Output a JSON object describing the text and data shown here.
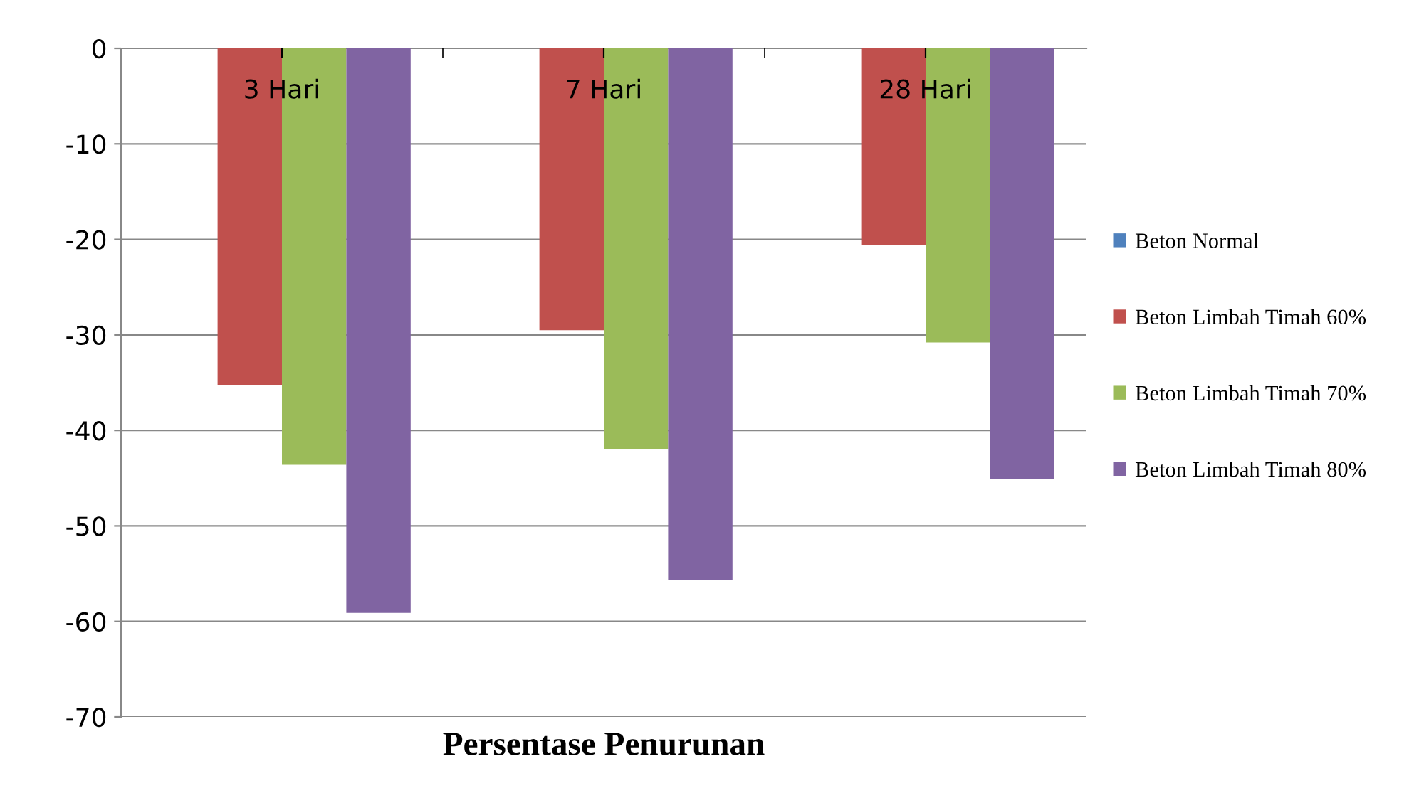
{
  "chart_data": {
    "type": "bar",
    "xlabel": "Persentase Penurunan",
    "categories": [
      "3 Hari",
      "7 Hari",
      "28 Hari"
    ],
    "series": [
      {
        "name": "Beton Normal",
        "color": "#4f81bd",
        "values": [
          0,
          0,
          0
        ]
      },
      {
        "name": "Beton Limbah Timah 60%",
        "color": "#c0504d",
        "values": [
          -35.3,
          -29.5,
          -20.6
        ]
      },
      {
        "name": "Beton Limbah Timah 70%",
        "color": "#9bbb59",
        "values": [
          -43.6,
          -42.0,
          -30.8
        ]
      },
      {
        "name": "Beton Limbah Timah 80%",
        "color": "#8064a2",
        "values": [
          -59.1,
          -55.7,
          -45.1
        ]
      }
    ],
    "ylim": [
      -70,
      0
    ],
    "yticks": [
      -70,
      -60,
      -50,
      -40,
      -30,
      -20,
      -10,
      0
    ],
    "grid": "y",
    "legend": "right"
  }
}
